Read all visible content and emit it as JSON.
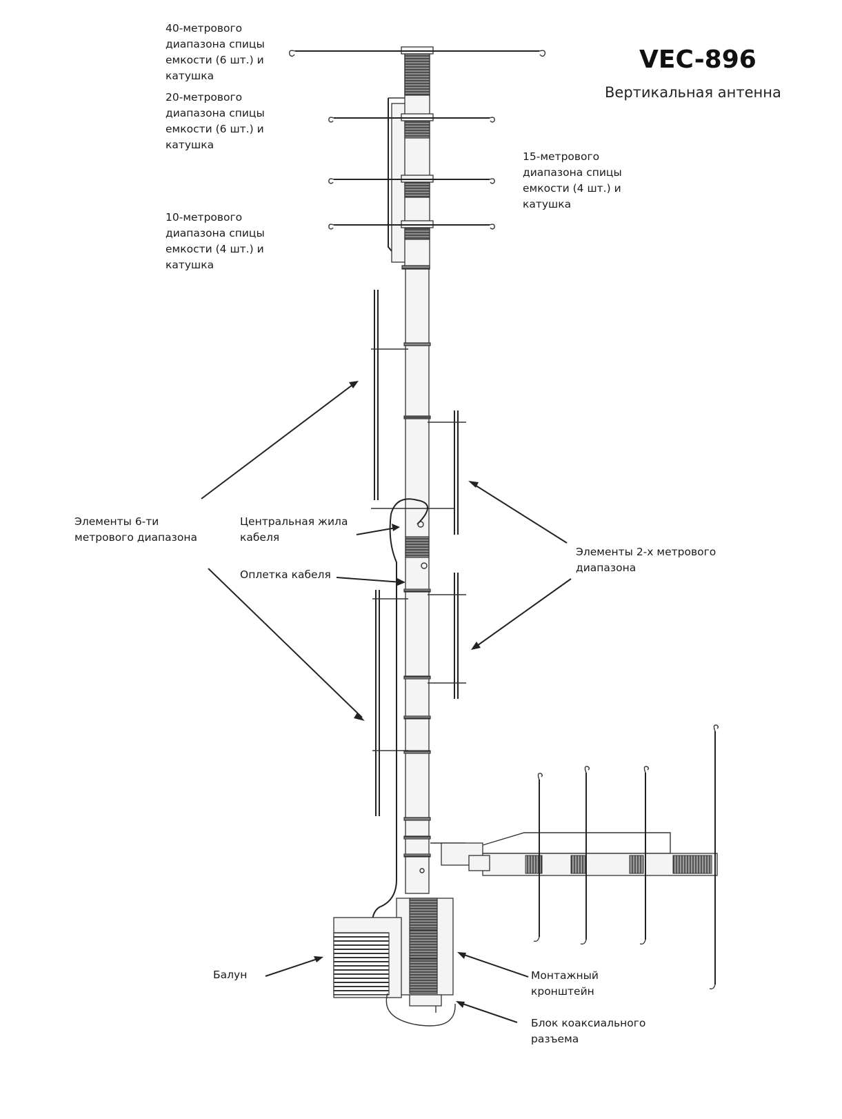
{
  "title": "VEC-896",
  "subtitle": "Вертикальная антенна",
  "labels": {
    "band40": "40-метрового\nдиапазона спицы\nемкости (6 шт.) и\nкатушка",
    "band20": "20-метрового\nдиапазона спицы\nемкости (6 шт.) и\nкатушка",
    "band15": "15-метрового\nдиапазона спицы\nемкости (4 шт.) и\nкатушка",
    "band10": "10-метрового\nдиапазона спицы\nемкости (4 шт.) и\nкатушка",
    "elements6m": "Элементы 6-ти\nметрового диапазона",
    "center_conductor": "Центральная жила\nкабеля",
    "braid": "Оплетка кабеля",
    "elements2m": "Элементы 2-х метрового\nдиапазона",
    "balun": "Балун",
    "mount_bracket": "Монтажный\nкронштейн",
    "coax_block": "Блок коаксиального\nразъема"
  }
}
